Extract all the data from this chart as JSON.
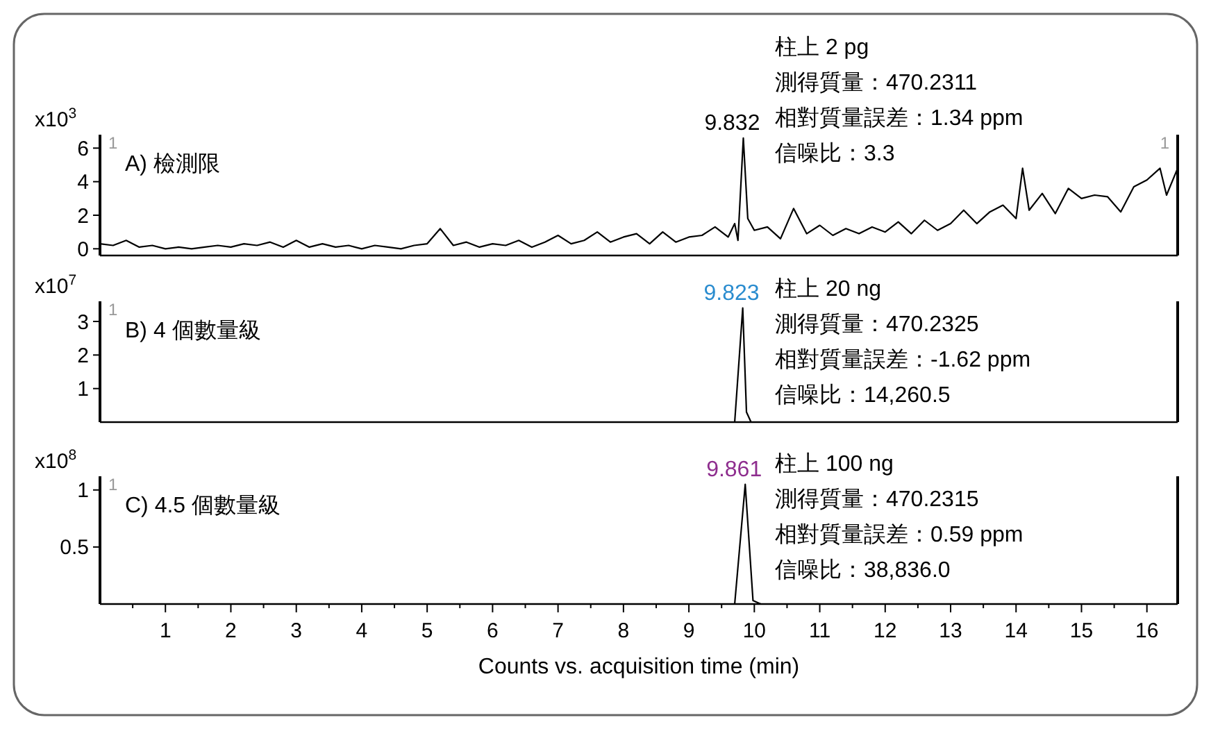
{
  "chart_data": [
    {
      "type": "line",
      "title": "A) 檢測限",
      "ylabel": "x10$^{3}$",
      "xlim": [
        0,
        16.47
      ],
      "ylim": [
        -0.4,
        6.8
      ],
      "yticks": [
        0,
        2,
        4,
        6
      ],
      "tick_labels": "y",
      "grid": false,
      "marker": "none",
      "line_style": "solid",
      "annotations": [
        {
          "text": "9.832",
          "x": 9.832,
          "y": 6.6
        },
        "1",
        "1",
        "柱上 2 pg\n測得質量：470.2311\n相對質量誤差：1.34 ppm\n信噪比：3.3"
      ],
      "series": [
        {
          "color": "#000000",
          "x": [
            0,
            0.2,
            0.4,
            0.6,
            0.8,
            1.0,
            1.2,
            1.4,
            1.6,
            1.8,
            2.0,
            2.2,
            2.4,
            2.6,
            2.8,
            3.0,
            3.2,
            3.4,
            3.6,
            3.8,
            4.0,
            4.2,
            4.4,
            4.6,
            4.8,
            5.0,
            5.2,
            5.4,
            5.6,
            5.8,
            6.0,
            6.2,
            6.4,
            6.6,
            6.8,
            7.0,
            7.2,
            7.4,
            7.6,
            7.8,
            8.0,
            8.2,
            8.4,
            8.6,
            8.8,
            9.0,
            9.2,
            9.4,
            9.6,
            9.7,
            9.75,
            9.832,
            9.9,
            10.0,
            10.2,
            10.4,
            10.6,
            10.8,
            11.0,
            11.2,
            11.4,
            11.6,
            11.8,
            12.0,
            12.2,
            12.4,
            12.6,
            12.8,
            13.0,
            13.2,
            13.4,
            13.6,
            13.8,
            14.0,
            14.1,
            14.2,
            14.4,
            14.6,
            14.8,
            15.0,
            15.2,
            15.4,
            15.6,
            15.8,
            16.0,
            16.2,
            16.3,
            16.47
          ],
          "values": [
            0.3,
            0.2,
            0.5,
            0.1,
            0.2,
            0.0,
            0.1,
            0.0,
            0.1,
            0.2,
            0.1,
            0.3,
            0.2,
            0.4,
            0.1,
            0.5,
            0.1,
            0.3,
            0.1,
            0.2,
            0.0,
            0.2,
            0.1,
            0.0,
            0.2,
            0.3,
            1.2,
            0.2,
            0.4,
            0.1,
            0.3,
            0.2,
            0.5,
            0.1,
            0.4,
            0.8,
            0.3,
            0.5,
            1.0,
            0.4,
            0.7,
            0.9,
            0.3,
            1.0,
            0.4,
            0.7,
            0.8,
            1.3,
            0.7,
            1.5,
            0.5,
            6.6,
            1.8,
            1.1,
            1.3,
            0.6,
            2.4,
            0.9,
            1.4,
            0.8,
            1.2,
            0.9,
            1.3,
            1.0,
            1.6,
            0.9,
            1.7,
            1.1,
            1.5,
            2.3,
            1.5,
            2.2,
            2.6,
            1.8,
            4.8,
            2.3,
            3.3,
            2.1,
            3.6,
            3.0,
            3.2,
            3.1,
            2.2,
            3.7,
            4.1,
            4.8,
            3.2,
            4.8
          ]
        }
      ]
    },
    {
      "type": "line",
      "title": "B)  4 個數量級",
      "ylabel": "x10$^{7}$",
      "xlim": [
        0,
        16.47
      ],
      "ylim": [
        0,
        3.6
      ],
      "yticks": [
        1,
        2,
        3
      ],
      "tick_labels": "y",
      "grid": false,
      "marker": "none",
      "line_style": "solid",
      "annotations": [
        {
          "text": "9.823",
          "x": 9.823,
          "y": 3.4
        },
        "1",
        "柱上 20 ng\n測得質量：470.2325\n相對質量誤差：-1.62 ppm\n信噪比：14,260.5"
      ],
      "series": [
        {
          "color": "#000000",
          "x": [
            0,
            9.7,
            9.823,
            9.88,
            9.95,
            16.47
          ],
          "values": [
            0,
            0,
            3.4,
            0.3,
            0,
            0
          ]
        }
      ]
    },
    {
      "type": "line",
      "title": "C)  4.5 個數量級",
      "ylabel": "x10$^{8}$",
      "xlabel": "Counts vs. acquisition time (min)",
      "xlim": [
        0,
        16.47
      ],
      "ylim": [
        0,
        1.12
      ],
      "yticks": [
        0.5,
        1
      ],
      "grid": false,
      "marker": "none",
      "line_style": "solid",
      "xticks": [
        {
          "value": 0.5,
          "label": null
        },
        1,
        {
          "value": 1.5,
          "label": null
        },
        2,
        {
          "value": 2.5,
          "label": null
        },
        3,
        {
          "value": 3.5,
          "label": null
        },
        4,
        {
          "value": 4.5,
          "label": null
        },
        5,
        {
          "value": 5.5,
          "label": null
        },
        6,
        {
          "value": 6.5,
          "label": null
        },
        7,
        {
          "value": 7.5,
          "label": null
        },
        8,
        {
          "value": 8.5,
          "label": null
        },
        9,
        {
          "value": 9.5,
          "label": null
        },
        10,
        {
          "value": 10.5,
          "label": null
        },
        11,
        {
          "value": 11.5,
          "label": null
        },
        12,
        {
          "value": 12.5,
          "label": null
        },
        13,
        {
          "value": 13.5,
          "label": null
        },
        14,
        {
          "value": 14.5,
          "label": null
        },
        15,
        {
          "value": 15.5,
          "label": null
        },
        16
      ],
      "annotations": [
        {
          "text": "9.861",
          "x": 9.861,
          "y": 1.05
        },
        "1",
        "柱上 100 ng\n測得質量：470.2315\n相對質量誤差：0.59 ppm\n信噪比：38,836.0"
      ],
      "series": [
        {
          "color": "#000000",
          "x": [
            0,
            9.7,
            9.861,
            9.98,
            10.1,
            16.47
          ],
          "values": [
            0,
            0,
            1.05,
            0.03,
            0,
            0
          ]
        }
      ]
    }
  ]
}
